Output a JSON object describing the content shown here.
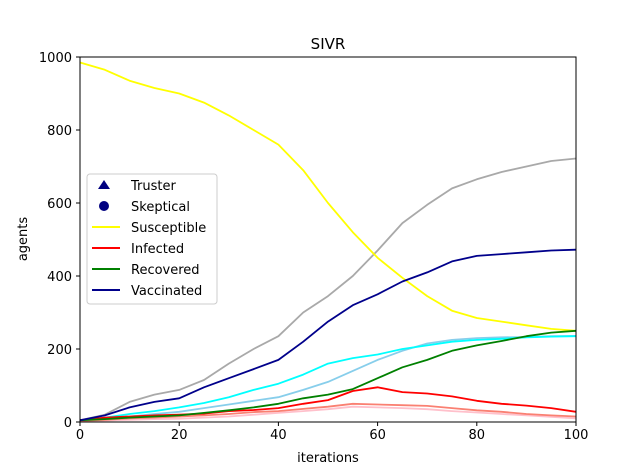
{
  "chart_data": {
    "type": "line",
    "title": "SIVR",
    "xlabel": "iterations",
    "ylabel": "agents",
    "xlim": [
      0,
      100
    ],
    "ylim": [
      0,
      1000
    ],
    "x_ticks": [
      "0",
      "20",
      "40",
      "60",
      "80",
      "100"
    ],
    "y_ticks": [
      "0",
      "200",
      "400",
      "600",
      "800",
      "1000"
    ],
    "grid": false,
    "legend_position": "center-left",
    "legend": [
      {
        "label": "Truster",
        "marker": "triangle",
        "color": "#000080"
      },
      {
        "label": "Skeptical",
        "marker": "circle",
        "color": "#000080"
      },
      {
        "label": "Susceptible",
        "color": "#ffff00"
      },
      {
        "label": "Infected",
        "color": "#ff0000"
      },
      {
        "label": "Recovered",
        "color": "#008000"
      },
      {
        "label": "Vaccinated",
        "color": "#00008b"
      }
    ],
    "x": [
      0,
      5,
      10,
      15,
      20,
      25,
      30,
      35,
      40,
      45,
      50,
      55,
      60,
      65,
      70,
      75,
      80,
      85,
      90,
      95,
      100
    ],
    "series": [
      {
        "name": "Susceptible",
        "color": "#ffff00",
        "values": [
          985,
          965,
          935,
          915,
          900,
          875,
          840,
          800,
          760,
          690,
          600,
          520,
          450,
          395,
          345,
          305,
          285,
          275,
          265,
          255,
          250
        ]
      },
      {
        "name": "Infected",
        "color": "#ff0000",
        "values": [
          5,
          12,
          15,
          18,
          20,
          23,
          30,
          33,
          38,
          50,
          60,
          85,
          95,
          82,
          78,
          70,
          58,
          50,
          45,
          38,
          28
        ]
      },
      {
        "name": "Recovered",
        "color": "#008000",
        "values": [
          5,
          8,
          12,
          15,
          18,
          25,
          32,
          40,
          50,
          65,
          75,
          90,
          120,
          150,
          170,
          195,
          210,
          222,
          235,
          245,
          250
        ]
      },
      {
        "name": "Vaccinated",
        "color": "#00008b",
        "values": [
          5,
          18,
          40,
          55,
          65,
          95,
          120,
          145,
          170,
          220,
          275,
          320,
          350,
          385,
          410,
          440,
          455,
          460,
          465,
          470,
          472
        ]
      },
      {
        "color": "#a9a9a9",
        "values": [
          5,
          20,
          55,
          75,
          88,
          115,
          160,
          200,
          235,
          300,
          345,
          400,
          470,
          545,
          595,
          640,
          665,
          685,
          700,
          715,
          722
        ]
      },
      {
        "color": "#00ffff",
        "values": [
          5,
          12,
          22,
          30,
          40,
          52,
          68,
          88,
          105,
          130,
          160,
          175,
          185,
          200,
          210,
          220,
          225,
          228,
          232,
          234,
          235
        ]
      },
      {
        "color": "#87ceeb",
        "values": [
          5,
          10,
          15,
          22,
          28,
          38,
          48,
          58,
          68,
          88,
          110,
          140,
          170,
          195,
          215,
          225,
          230,
          232,
          233,
          235,
          236
        ]
      },
      {
        "color": "#fa8072",
        "values": [
          3,
          6,
          10,
          12,
          15,
          18,
          22,
          27,
          30,
          36,
          42,
          50,
          48,
          46,
          44,
          38,
          32,
          28,
          22,
          18,
          15
        ]
      },
      {
        "color": "#ffc0cb",
        "values": [
          2,
          4,
          6,
          8,
          9,
          12,
          15,
          20,
          25,
          30,
          35,
          42,
          40,
          38,
          35,
          30,
          26,
          22,
          18,
          14,
          10
        ]
      }
    ]
  }
}
